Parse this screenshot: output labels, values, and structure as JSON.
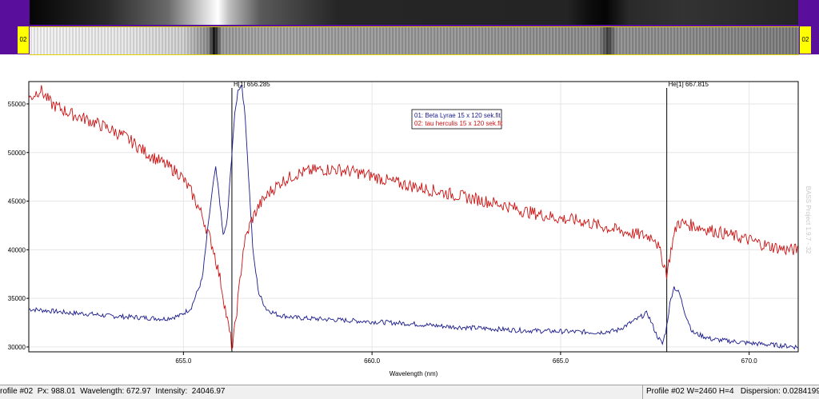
{
  "spectrum_strip": {
    "tag_left": "02",
    "tag_right": "02"
  },
  "watermark": "BASS Project 1.9.7 - 32",
  "status_bar": {
    "left": "rofile #02  Px: 988.01  Wavelength: 672.97  Intensity:  24046.97",
    "right": "Profile #02 W=2460 H=4   Dispersion: 0.02841993 nm/px"
  },
  "chart_data": {
    "type": "line",
    "xlabel": "Wavelength (nm)",
    "ylabel": "",
    "xlim": [
      650.9,
      671.3
    ],
    "ylim": [
      29500,
      57300
    ],
    "x_ticks": [
      655,
      660,
      665,
      670
    ],
    "x_tick_labels": [
      "655.0",
      "660.0",
      "665.0",
      "670.0"
    ],
    "y_ticks": [
      30000,
      35000,
      40000,
      45000,
      50000,
      55000
    ],
    "y_tick_labels": [
      "30000",
      "35000",
      "40000",
      "45000",
      "50000",
      "55000"
    ],
    "grid": true,
    "legend_position": "top-center",
    "annotations": [
      {
        "label": "H[1] 656.285",
        "x": 656.285
      },
      {
        "label": "He[1] 667.815",
        "x": 667.815
      }
    ],
    "cursor_line_x": 672.97,
    "series": [
      {
        "name": "01: Beta Lyrae 15 x 120 sek.fit",
        "color": "#1a1a8c",
        "x": [
          650.9,
          651.5,
          652.0,
          652.5,
          653.0,
          653.5,
          654.0,
          654.5,
          654.9,
          655.2,
          655.5,
          655.7,
          655.85,
          655.95,
          656.05,
          656.15,
          656.25,
          656.35,
          656.45,
          656.55,
          656.65,
          656.75,
          656.85,
          657.0,
          657.2,
          657.5,
          658.0,
          659.0,
          660.0,
          661.0,
          662.0,
          663.0,
          664.0,
          665.0,
          666.0,
          666.5,
          667.0,
          667.3,
          667.55,
          667.7,
          667.8,
          667.9,
          668.0,
          668.15,
          668.3,
          668.5,
          669.0,
          670.0,
          671.0,
          671.3
        ],
        "values": [
          33900,
          33700,
          33500,
          33400,
          33200,
          33100,
          33000,
          32900,
          33200,
          34000,
          37000,
          44000,
          48500,
          45500,
          41500,
          42500,
          48000,
          53500,
          56500,
          57000,
          53000,
          46000,
          39500,
          35500,
          33900,
          33300,
          33000,
          32800,
          32600,
          32400,
          32100,
          31900,
          31700,
          31600,
          31500,
          31700,
          32800,
          33500,
          31200,
          30300,
          31800,
          34500,
          36200,
          35500,
          33500,
          31500,
          30800,
          30400,
          30100,
          30000
        ]
      },
      {
        "name": "02: tau herculis 15 x 120 sek.fit",
        "color": "#cc1111",
        "x": [
          650.9,
          651.2,
          651.5,
          652.0,
          652.5,
          653.0,
          653.5,
          654.0,
          654.5,
          654.9,
          655.2,
          655.5,
          655.8,
          656.0,
          656.15,
          656.3,
          656.45,
          656.6,
          656.8,
          657.0,
          657.3,
          657.6,
          658.0,
          658.5,
          659.0,
          659.5,
          660.0,
          660.5,
          661.0,
          661.5,
          662.0,
          662.5,
          663.0,
          663.5,
          664.0,
          664.5,
          665.0,
          665.5,
          666.0,
          666.5,
          667.0,
          667.5,
          667.7,
          667.82,
          667.95,
          668.1,
          668.5,
          669.0,
          669.5,
          670.0,
          670.5,
          671.0,
          671.3
        ],
        "values": [
          55500,
          56500,
          55000,
          54000,
          53300,
          52500,
          51500,
          50000,
          48800,
          47800,
          46000,
          43500,
          40000,
          36500,
          33000,
          29800,
          35000,
          40500,
          43000,
          44500,
          46000,
          47000,
          47800,
          48200,
          48300,
          48000,
          47600,
          47000,
          46600,
          46200,
          45800,
          45400,
          45000,
          44600,
          44000,
          43600,
          43200,
          43000,
          42500,
          42000,
          41600,
          41300,
          39000,
          37500,
          40500,
          42800,
          42500,
          42000,
          41500,
          41000,
          40400,
          40000,
          40000
        ]
      }
    ]
  }
}
